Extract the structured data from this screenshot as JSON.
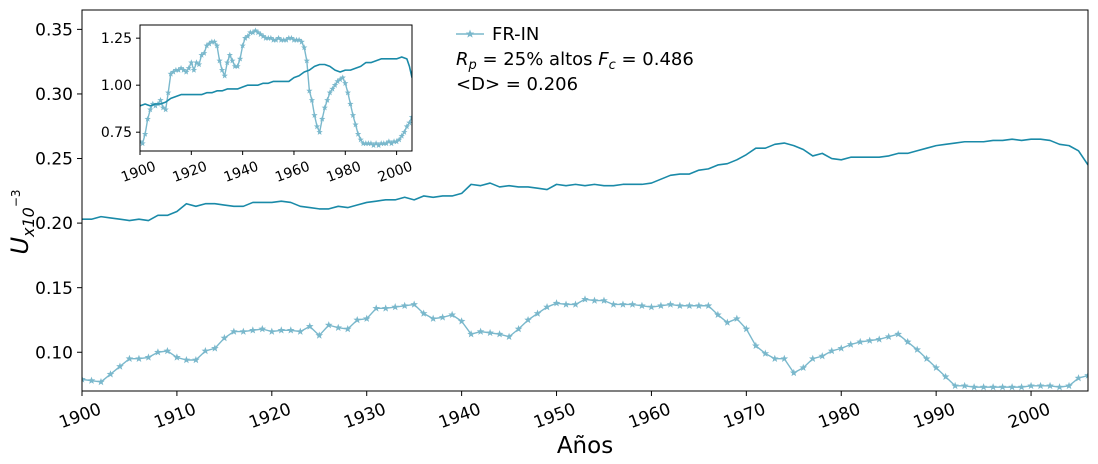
{
  "chart_data": [
    {
      "type": "line",
      "title": "",
      "xlabel": "Años",
      "ylabel_base": "U",
      "ylabel_sub": "x10",
      "ylabel_sup": "−3",
      "xlim": [
        1900,
        2006
      ],
      "ylim": [
        0.07,
        0.365
      ],
      "xticks": [
        1900,
        1910,
        1920,
        1930,
        1940,
        1950,
        1960,
        1970,
        1980,
        1990,
        2000
      ],
      "xtick_labels": [
        "1900",
        "1910",
        "1920",
        "1930",
        "1940",
        "1950",
        "1960",
        "1970",
        "1980",
        "1990",
        "2000"
      ],
      "yticks": [
        0.1,
        0.15,
        0.2,
        0.25,
        0.3,
        0.35
      ],
      "ytick_labels": [
        "0.10",
        "0.15",
        "0.20",
        "0.25",
        "0.30",
        "0.35"
      ],
      "grid": false,
      "legend_position": "top-center",
      "annotations": {
        "rp_sym": "R",
        "rp_sub": "p",
        "rp_text": " =  25% altos  ",
        "fc_sym": "F",
        "fc_sub": "c",
        "fc_text": " = 0.486",
        "d_text": "<D> = 0.206"
      },
      "colors": {
        "markers": "#7ab8cc",
        "line": "#1a8aa8"
      },
      "series": [
        {
          "name": "FR-IN",
          "marker": "star",
          "x": [
            1900,
            1901,
            1902,
            1903,
            1904,
            1905,
            1906,
            1907,
            1908,
            1909,
            1910,
            1911,
            1912,
            1913,
            1914,
            1915,
            1916,
            1917,
            1918,
            1919,
            1920,
            1921,
            1922,
            1923,
            1924,
            1925,
            1926,
            1927,
            1928,
            1929,
            1930,
            1931,
            1932,
            1933,
            1934,
            1935,
            1936,
            1937,
            1938,
            1939,
            1940,
            1941,
            1942,
            1943,
            1944,
            1945,
            1946,
            1947,
            1948,
            1949,
            1950,
            1951,
            1952,
            1953,
            1954,
            1955,
            1956,
            1957,
            1958,
            1959,
            1960,
            1961,
            1962,
            1963,
            1964,
            1965,
            1966,
            1967,
            1968,
            1969,
            1970,
            1971,
            1972,
            1973,
            1974,
            1975,
            1976,
            1977,
            1978,
            1979,
            1980,
            1981,
            1982,
            1983,
            1984,
            1985,
            1986,
            1987,
            1988,
            1989,
            1990,
            1991,
            1992,
            1993,
            1994,
            1995,
            1996,
            1997,
            1998,
            1999,
            2000,
            2001,
            2002,
            2003,
            2004,
            2005,
            2006
          ],
          "values": [
            0.079,
            0.078,
            0.077,
            0.083,
            0.089,
            0.095,
            0.095,
            0.096,
            0.1,
            0.101,
            0.096,
            0.094,
            0.094,
            0.101,
            0.103,
            0.111,
            0.116,
            0.116,
            0.117,
            0.118,
            0.116,
            0.117,
            0.117,
            0.116,
            0.12,
            0.113,
            0.121,
            0.119,
            0.118,
            0.125,
            0.126,
            0.134,
            0.134,
            0.135,
            0.136,
            0.137,
            0.13,
            0.126,
            0.127,
            0.129,
            0.124,
            0.114,
            0.116,
            0.115,
            0.114,
            0.112,
            0.118,
            0.125,
            0.13,
            0.135,
            0.138,
            0.137,
            0.137,
            0.141,
            0.14,
            0.14,
            0.137,
            0.137,
            0.137,
            0.136,
            0.135,
            0.136,
            0.137,
            0.136,
            0.136,
            0.136,
            0.136,
            0.129,
            0.123,
            0.126,
            0.118,
            0.105,
            0.099,
            0.095,
            0.095,
            0.084,
            0.088,
            0.095,
            0.097,
            0.101,
            0.103,
            0.106,
            0.108,
            0.109,
            0.11,
            0.112,
            0.114,
            0.108,
            0.102,
            0.095,
            0.088,
            0.081,
            0.074,
            0.074,
            0.073,
            0.073,
            0.073,
            0.073,
            0.073,
            0.073,
            0.074,
            0.074,
            0.074,
            0.073,
            0.074,
            0.08,
            0.082
          ]
        },
        {
          "name": "",
          "marker": "none",
          "x": [
            1900,
            1901,
            1902,
            1903,
            1904,
            1905,
            1906,
            1907,
            1908,
            1909,
            1910,
            1911,
            1912,
            1913,
            1914,
            1915,
            1916,
            1917,
            1918,
            1919,
            1920,
            1921,
            1922,
            1923,
            1924,
            1925,
            1926,
            1927,
            1928,
            1929,
            1930,
            1931,
            1932,
            1933,
            1934,
            1935,
            1936,
            1937,
            1938,
            1939,
            1940,
            1941,
            1942,
            1943,
            1944,
            1945,
            1946,
            1947,
            1948,
            1949,
            1950,
            1951,
            1952,
            1953,
            1954,
            1955,
            1956,
            1957,
            1958,
            1959,
            1960,
            1961,
            1962,
            1963,
            1964,
            1965,
            1966,
            1967,
            1968,
            1969,
            1970,
            1971,
            1972,
            1973,
            1974,
            1975,
            1976,
            1977,
            1978,
            1979,
            1980,
            1981,
            1982,
            1983,
            1984,
            1985,
            1986,
            1987,
            1988,
            1989,
            1990,
            1991,
            1992,
            1993,
            1994,
            1995,
            1996,
            1997,
            1998,
            1999,
            2000,
            2001,
            2002,
            2003,
            2004,
            2005,
            2006
          ],
          "values": [
            0.203,
            0.203,
            0.205,
            0.204,
            0.203,
            0.202,
            0.203,
            0.202,
            0.206,
            0.206,
            0.209,
            0.215,
            0.213,
            0.215,
            0.215,
            0.214,
            0.213,
            0.213,
            0.216,
            0.216,
            0.216,
            0.217,
            0.216,
            0.213,
            0.212,
            0.211,
            0.211,
            0.213,
            0.212,
            0.214,
            0.216,
            0.217,
            0.218,
            0.218,
            0.22,
            0.218,
            0.221,
            0.22,
            0.221,
            0.221,
            0.223,
            0.23,
            0.229,
            0.231,
            0.228,
            0.229,
            0.228,
            0.228,
            0.227,
            0.226,
            0.23,
            0.229,
            0.23,
            0.229,
            0.23,
            0.229,
            0.229,
            0.23,
            0.23,
            0.23,
            0.231,
            0.234,
            0.237,
            0.238,
            0.238,
            0.241,
            0.242,
            0.245,
            0.246,
            0.249,
            0.253,
            0.258,
            0.258,
            0.261,
            0.262,
            0.26,
            0.257,
            0.252,
            0.254,
            0.25,
            0.249,
            0.251,
            0.251,
            0.251,
            0.251,
            0.252,
            0.254,
            0.254,
            0.256,
            0.258,
            0.26,
            0.261,
            0.262,
            0.263,
            0.263,
            0.263,
            0.264,
            0.264,
            0.265,
            0.264,
            0.265,
            0.265,
            0.264,
            0.261,
            0.26,
            0.256,
            0.245
          ]
        }
      ]
    },
    {
      "type": "line",
      "title": "",
      "xlabel": "",
      "ylabel": "",
      "xlim": [
        1900,
        2006
      ],
      "ylim": [
        0.65,
        1.32
      ],
      "xticks": [
        1900,
        1920,
        1940,
        1960,
        1980,
        2000
      ],
      "xtick_labels": [
        "1900",
        "1920",
        "1940",
        "1960",
        "1980",
        "2000"
      ],
      "yticks": [
        0.75,
        1.0,
        1.25
      ],
      "ytick_labels": [
        "0.75",
        "1.00",
        "1.25"
      ],
      "grid": false,
      "series": [
        {
          "name": "",
          "marker": "star",
          "x": [
            1900,
            1901,
            1902,
            1903,
            1904,
            1905,
            1906,
            1907,
            1908,
            1909,
            1910,
            1911,
            1912,
            1913,
            1914,
            1915,
            1916,
            1917,
            1918,
            1919,
            1920,
            1921,
            1922,
            1923,
            1924,
            1925,
            1926,
            1927,
            1928,
            1929,
            1930,
            1931,
            1932,
            1933,
            1934,
            1935,
            1936,
            1937,
            1938,
            1939,
            1940,
            1941,
            1942,
            1943,
            1944,
            1945,
            1946,
            1947,
            1948,
            1949,
            1950,
            1951,
            1952,
            1953,
            1954,
            1955,
            1956,
            1957,
            1958,
            1959,
            1960,
            1961,
            1962,
            1963,
            1964,
            1965,
            1966,
            1967,
            1968,
            1969,
            1970,
            1971,
            1972,
            1973,
            1974,
            1975,
            1976,
            1977,
            1978,
            1979,
            1980,
            1981,
            1982,
            1983,
            1984,
            1985,
            1986,
            1987,
            1988,
            1989,
            1990,
            1991,
            1992,
            1993,
            1994,
            1995,
            1996,
            1997,
            1998,
            1999,
            2000,
            2001,
            2002,
            2003,
            2004,
            2005,
            2006
          ],
          "values": [
            0.7,
            0.69,
            0.74,
            0.82,
            0.87,
            0.9,
            0.89,
            0.9,
            0.92,
            0.88,
            0.87,
            0.96,
            1.06,
            1.07,
            1.08,
            1.08,
            1.09,
            1.08,
            1.07,
            1.09,
            1.12,
            1.08,
            1.12,
            1.11,
            1.16,
            1.17,
            1.21,
            1.22,
            1.23,
            1.23,
            1.21,
            1.13,
            1.08,
            1.05,
            1.12,
            1.16,
            1.13,
            1.1,
            1.1,
            1.14,
            1.21,
            1.25,
            1.26,
            1.28,
            1.28,
            1.29,
            1.28,
            1.27,
            1.26,
            1.25,
            1.25,
            1.25,
            1.24,
            1.24,
            1.25,
            1.24,
            1.24,
            1.24,
            1.25,
            1.25,
            1.24,
            1.24,
            1.24,
            1.23,
            1.2,
            1.13,
            0.97,
            0.92,
            0.84,
            0.78,
            0.75,
            0.82,
            0.88,
            0.92,
            0.96,
            0.98,
            1.0,
            1.02,
            1.03,
            1.04,
            1.01,
            0.96,
            0.9,
            0.84,
            0.79,
            0.74,
            0.71,
            0.69,
            0.69,
            0.69,
            0.69,
            0.68,
            0.69,
            0.68,
            0.69,
            0.69,
            0.69,
            0.7,
            0.69,
            0.7,
            0.7,
            0.71,
            0.73,
            0.75,
            0.78,
            0.8,
            0.83
          ]
        },
        {
          "name": "",
          "marker": "none",
          "x": [
            1900,
            1902,
            1904,
            1906,
            1908,
            1910,
            1912,
            1914,
            1916,
            1918,
            1920,
            1922,
            1924,
            1926,
            1928,
            1930,
            1932,
            1934,
            1936,
            1938,
            1940,
            1942,
            1944,
            1946,
            1948,
            1950,
            1952,
            1954,
            1956,
            1958,
            1960,
            1962,
            1964,
            1966,
            1968,
            1970,
            1972,
            1974,
            1976,
            1978,
            1980,
            1982,
            1984,
            1986,
            1988,
            1990,
            1992,
            1994,
            1996,
            1998,
            2000,
            2002,
            2004,
            2005,
            2006
          ],
          "values": [
            0.89,
            0.9,
            0.89,
            0.9,
            0.9,
            0.91,
            0.93,
            0.94,
            0.95,
            0.95,
            0.95,
            0.95,
            0.95,
            0.96,
            0.96,
            0.97,
            0.97,
            0.98,
            0.98,
            0.98,
            0.99,
            1.0,
            1.0,
            1.0,
            1.01,
            1.01,
            1.02,
            1.02,
            1.02,
            1.02,
            1.04,
            1.05,
            1.07,
            1.08,
            1.1,
            1.11,
            1.11,
            1.1,
            1.08,
            1.07,
            1.08,
            1.08,
            1.09,
            1.1,
            1.12,
            1.12,
            1.13,
            1.14,
            1.14,
            1.14,
            1.14,
            1.15,
            1.14,
            1.1,
            1.04
          ]
        }
      ]
    }
  ]
}
